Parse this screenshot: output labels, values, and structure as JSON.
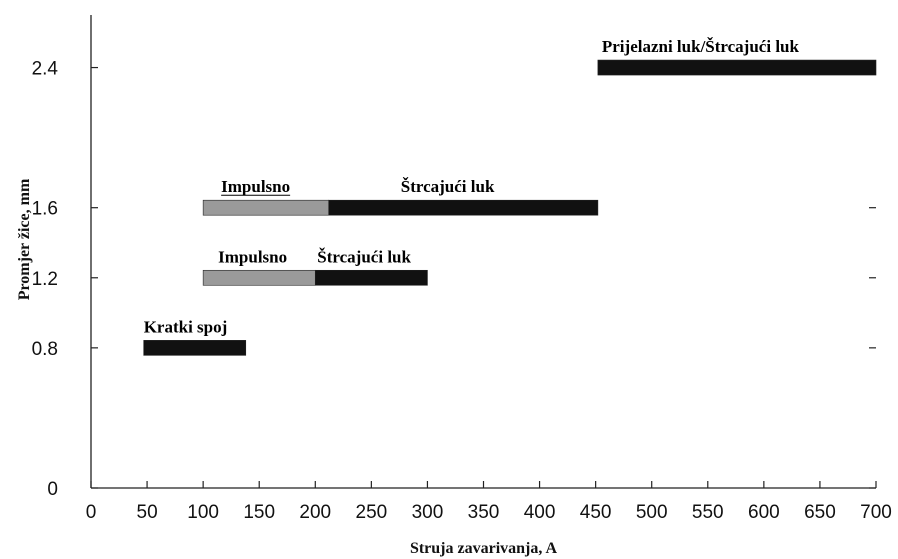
{
  "chart_data": {
    "type": "bar",
    "orientation": "horizontal-range",
    "xlabel": "Struja zavarivanja, A",
    "ylabel": "Promjer žice, mm",
    "xlim": [
      0,
      700
    ],
    "ylim": [
      0,
      2.7
    ],
    "x_ticks": [
      "0",
      "50",
      "100",
      "150",
      "200",
      "250",
      "300",
      "350",
      "400",
      "450",
      "500",
      "550",
      "600",
      "650",
      "700"
    ],
    "y_ticks": [
      "0",
      "0.8",
      "1.2",
      "1.6",
      "2.4"
    ],
    "x_tick_values": [
      0,
      50,
      100,
      150,
      200,
      250,
      300,
      350,
      400,
      450,
      500,
      550,
      600,
      650,
      700
    ],
    "y_tick_values": [
      0,
      0.8,
      1.2,
      1.6,
      2.4
    ],
    "colors": {
      "pulsed": "#9a9a9a",
      "solid": "#111111"
    },
    "series": [
      {
        "name": "Kratki spoj",
        "y": 0.8,
        "x_start": 47,
        "x_end": 138,
        "style": "solid"
      },
      {
        "name": "Impulsno",
        "y": 1.2,
        "x_start": 100,
        "x_end": 200,
        "style": "pulsed"
      },
      {
        "name": "Štrcajući luk",
        "y": 1.2,
        "x_start": 200,
        "x_end": 300,
        "style": "solid"
      },
      {
        "name": "Impulsno",
        "y": 1.6,
        "x_start": 100,
        "x_end": 212,
        "style": "pulsed"
      },
      {
        "name": "Štrcajući luk",
        "y": 1.6,
        "x_start": 212,
        "x_end": 452,
        "style": "solid"
      },
      {
        "name": "Prijelazni luk/Štrcajući luk",
        "y": 2.4,
        "x_start": 452,
        "x_end": 700,
        "style": "solid"
      }
    ]
  }
}
